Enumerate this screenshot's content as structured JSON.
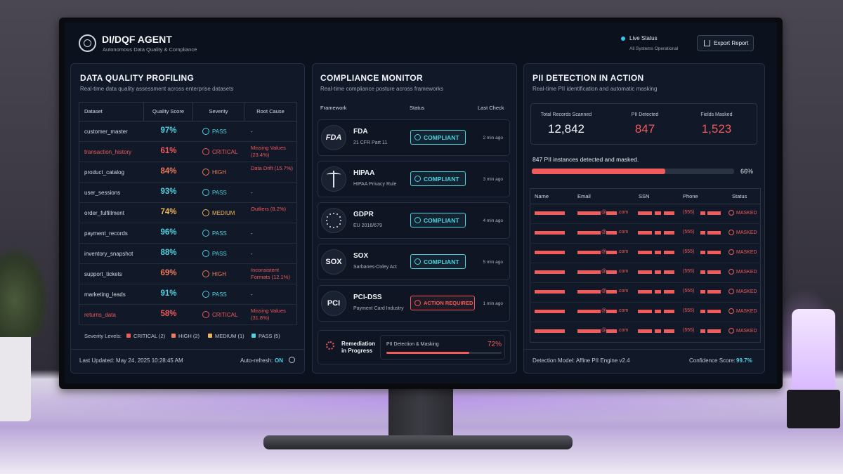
{
  "header": {
    "title": "DI/DQF AGENT",
    "subtitle": "Autonomous Data Quality & Compliance",
    "status": "Live Status",
    "status_detail": "All Systems Operational",
    "export": "Export Report"
  },
  "quality": {
    "title": "DATA QUALITY PROFILING",
    "subtitle": "Real-time data quality assessment across enterprise datasets",
    "columns": [
      "Dataset",
      "Quality Score",
      "Severity",
      "Root Cause"
    ],
    "rows": [
      [
        "customer_master",
        "97%",
        "PASS",
        "-"
      ],
      [
        "transaction_history",
        "61%",
        "CRITICAL",
        "Missing Values (23.4%)"
      ],
      [
        "product_catalog",
        "84%",
        "HIGH",
        "Data Drift (15.7%)"
      ],
      [
        "user_sessions",
        "93%",
        "PASS",
        "-"
      ],
      [
        "order_fulfillment",
        "74%",
        "MEDIUM",
        "Outliers (8.2%)"
      ],
      [
        "payment_records",
        "96%",
        "PASS",
        "-"
      ],
      [
        "inventory_snapshot",
        "88%",
        "PASS",
        "-"
      ],
      [
        "support_tickets",
        "69%",
        "HIGH",
        "Inconsistent Formats (12.1%)"
      ],
      [
        "marketing_leads",
        "91%",
        "PASS",
        "-"
      ],
      [
        "returns_data",
        "58%",
        "CRITICAL",
        "Missing Values (31.8%)"
      ]
    ],
    "legend_label": "Severity Levels:",
    "legend": [
      "CRITICAL (2)",
      "HIGH (2)",
      "MEDIUM (1)",
      "PASS (5)"
    ],
    "updated": "Last Updated: May 24, 2025 10:28:45 AM",
    "refresh_label": "Auto-refresh:",
    "refresh_value": "ON"
  },
  "compliance": {
    "title": "COMPLIANCE MONITOR",
    "subtitle": "Real-time compliance posture across frameworks",
    "columns": [
      "Framework",
      "Status",
      "Last Check"
    ],
    "rows": [
      {
        "logo": "FDA",
        "name": "FDA",
        "detail": "21 CFR Part 11",
        "status": "COMPLIANT",
        "checked": "2 min ago"
      },
      {
        "name": "HIPAA",
        "detail": "HIPAA Privacy Rule",
        "status": "COMPLIANT",
        "checked": "3 min ago"
      },
      {
        "name": "GDPR",
        "detail": "EU 2016/679",
        "status": "COMPLIANT",
        "checked": "4 min ago"
      },
      {
        "logo": "SOX",
        "name": "SOX",
        "detail": "Sarbanes-Oxley Act",
        "status": "COMPLIANT",
        "checked": "5 min ago"
      },
      {
        "logo": "PCI",
        "name": "PCI-DSS",
        "detail": "Payment Card Industry",
        "status": "ACTION REQUIRED",
        "checked": "1 min ago"
      }
    ],
    "remediation": {
      "title": "Remediation in Progress",
      "task": "PII Detection & Masking",
      "progress": {
        "value": 72,
        "label": "72%"
      }
    }
  },
  "pii": {
    "title": "PII DETECTION IN ACTION",
    "subtitle": "Real-time PII identification and automatic masking",
    "stats": [
      {
        "label": "Total Records Scanned",
        "value": "12,842"
      },
      {
        "label": "PII Detected",
        "value": "847"
      },
      {
        "label": "Fields Masked",
        "value": "1,523"
      }
    ],
    "summary": "847 PII instances detected and masked.",
    "progress": {
      "value": 66,
      "label": "66%"
    },
    "columns": [
      "Name",
      "Email",
      "SSN",
      "Phone",
      "Status"
    ],
    "rows": [
      {
        "at": "@",
        "tld": ".com",
        "area": "(555)",
        "status": "MASKED"
      },
      {
        "at": "@",
        "tld": ".com",
        "area": "(555)",
        "status": "MASKED"
      },
      {
        "at": "@",
        "tld": ".com",
        "area": "(555)",
        "status": "MASKED"
      },
      {
        "at": "@",
        "tld": ".com",
        "area": "(555)",
        "status": "MASKED"
      },
      {
        "at": "@",
        "tld": ".com",
        "area": "(555)",
        "status": "MASKED"
      },
      {
        "at": "@",
        "tld": ".com",
        "area": "(555)",
        "status": "MASKED"
      },
      {
        "at": "@",
        "tld": ".com",
        "area": "(555)",
        "status": "MASKED"
      }
    ],
    "model": "Detection Model: Affine PII Engine v2.4",
    "confidence_label": "Confidence Score:",
    "confidence_value": "99.7%"
  }
}
